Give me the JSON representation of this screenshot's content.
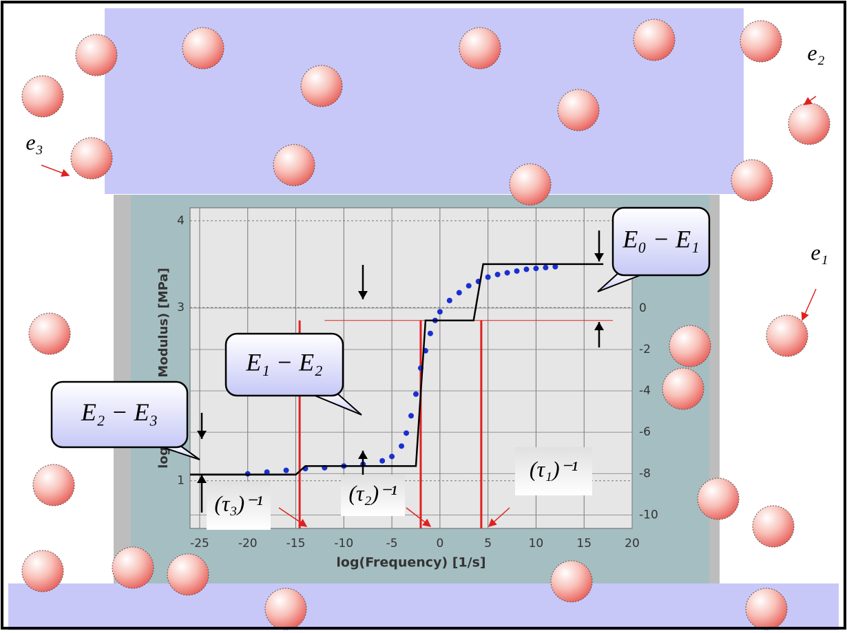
{
  "chart_data": {
    "type": "line",
    "x_label": "log(Frequency)  [1/s]",
    "y_label": "log (Storage Modulus)  [MPa]",
    "xlim": [
      -26,
      20
    ],
    "xticks": [
      -25,
      -20,
      -15,
      -10,
      -5,
      0,
      5,
      10,
      15,
      20
    ],
    "ylim": [
      0.45,
      4.15
    ],
    "yticks": [
      1,
      3,
      4
    ],
    "y2lim": [
      -10.65,
      4.85
    ],
    "y2ticks": [
      0,
      -2,
      -4,
      -6,
      -8,
      -10
    ],
    "grid": true,
    "series": [
      {
        "style": "points",
        "color": "#1a2fd0",
        "x": [
          -20,
          -18,
          -16,
          -14,
          -12,
          -10,
          -8,
          -6,
          -5,
          -4,
          -3.5,
          -3,
          -2.5,
          -2,
          -1.5,
          -1,
          -0.5,
          0,
          1,
          2,
          3,
          4,
          5,
          6,
          7,
          8,
          9,
          10,
          11,
          12
        ],
        "values": [
          1.08,
          1.1,
          1.12,
          1.14,
          1.15,
          1.17,
          1.19,
          1.23,
          1.28,
          1.4,
          1.55,
          1.75,
          2.0,
          2.3,
          2.5,
          2.7,
          2.85,
          2.95,
          3.08,
          3.17,
          3.25,
          3.3,
          3.35,
          3.38,
          3.4,
          3.42,
          3.44,
          3.45,
          3.46,
          3.47
        ]
      },
      {
        "style": "line",
        "color": "#000000",
        "x": [
          -26,
          -15,
          -14,
          -2.5,
          -1.5,
          3.5,
          4.5,
          17
        ],
        "values": [
          1.07,
          1.07,
          1.17,
          1.17,
          2.85,
          2.85,
          3.5,
          3.5
        ]
      }
    ],
    "vlines": [
      -14.6,
      -2,
      4.3
    ],
    "vline_color": "#e02020",
    "hline": 2.85
  },
  "callouts": [
    "E₀ − E₁",
    "E₁ − E₂",
    "E₂ − E₃"
  ],
  "tau_labels": [
    "(τ₁)⁻¹",
    "(τ₂)⁻¹",
    "(τ₃)⁻¹"
  ],
  "element_labels": [
    "e₁",
    "e₂",
    "e₃"
  ]
}
